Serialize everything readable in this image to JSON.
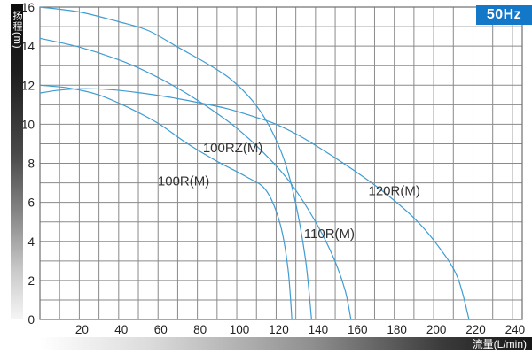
{
  "badge": {
    "label": "50Hz",
    "bg": "#1478c8",
    "fg": "#ffffff"
  },
  "chart_data": {
    "type": "line",
    "title": "",
    "xlabel": "流量(L/min)",
    "ylabel": "扬程(m)",
    "xlim": [
      0,
      245
    ],
    "ylim": [
      0,
      16
    ],
    "x_grid_step": 10,
    "y_grid_step": 1,
    "xticks": [
      20,
      40,
      60,
      80,
      100,
      120,
      140,
      160,
      180,
      200,
      220,
      240
    ],
    "yticks": [
      0,
      2,
      4,
      6,
      8,
      10,
      12,
      14,
      16
    ],
    "grid": true,
    "legend_position": "inline-labels",
    "line_color": "#3f9cd2",
    "grid_color": "#8a8a8a",
    "border_color": "#6f6f6f",
    "tick_color": "#222222",
    "label_color": "#333333",
    "series": [
      {
        "name": "100R(M)",
        "label_pos": [
          73,
          7.1
        ],
        "points": [
          [
            0,
            12
          ],
          [
            15,
            11.85
          ],
          [
            30,
            11.5
          ],
          [
            45,
            10.85
          ],
          [
            60,
            10.05
          ],
          [
            75,
            9.0
          ],
          [
            90,
            8.1
          ],
          [
            105,
            7.3
          ],
          [
            115,
            6.6
          ],
          [
            122,
            4.9
          ],
          [
            126,
            2.6
          ],
          [
            128,
            0
          ]
        ]
      },
      {
        "name": "100RZ(M)",
        "label_pos": [
          98,
          8.8
        ],
        "points": [
          [
            0,
            16
          ],
          [
            20,
            15.75
          ],
          [
            40,
            15.25
          ],
          [
            55,
            14.8
          ],
          [
            70,
            13.95
          ],
          [
            85,
            13.1
          ],
          [
            97,
            12.3
          ],
          [
            108,
            11.2
          ],
          [
            116,
            10.0
          ],
          [
            124,
            8.2
          ],
          [
            130,
            5.9
          ],
          [
            135,
            3.0
          ],
          [
            138,
            0
          ]
        ]
      },
      {
        "name": "110R(M)",
        "label_pos": [
          147,
          4.4
        ],
        "points": [
          [
            0,
            14.4
          ],
          [
            20,
            13.95
          ],
          [
            40,
            13.3
          ],
          [
            55,
            12.65
          ],
          [
            70,
            11.85
          ],
          [
            85,
            10.9
          ],
          [
            100,
            9.8
          ],
          [
            115,
            8.4
          ],
          [
            128,
            6.9
          ],
          [
            140,
            5.0
          ],
          [
            149,
            3.2
          ],
          [
            155,
            1.5
          ],
          [
            158,
            0
          ]
        ]
      },
      {
        "name": "120R(M)",
        "label_pos": [
          180,
          6.6
        ],
        "points": [
          [
            0,
            11.6
          ],
          [
            10,
            11.75
          ],
          [
            22,
            11.82
          ],
          [
            35,
            11.78
          ],
          [
            50,
            11.62
          ],
          [
            65,
            11.4
          ],
          [
            80,
            11.12
          ],
          [
            95,
            10.8
          ],
          [
            110,
            10.35
          ],
          [
            120,
            10.0
          ],
          [
            132,
            9.4
          ],
          [
            145,
            8.6
          ],
          [
            160,
            7.6
          ],
          [
            175,
            6.5
          ],
          [
            190,
            5.2
          ],
          [
            202,
            3.8
          ],
          [
            212,
            2.2
          ],
          [
            218,
            0
          ]
        ]
      }
    ]
  }
}
